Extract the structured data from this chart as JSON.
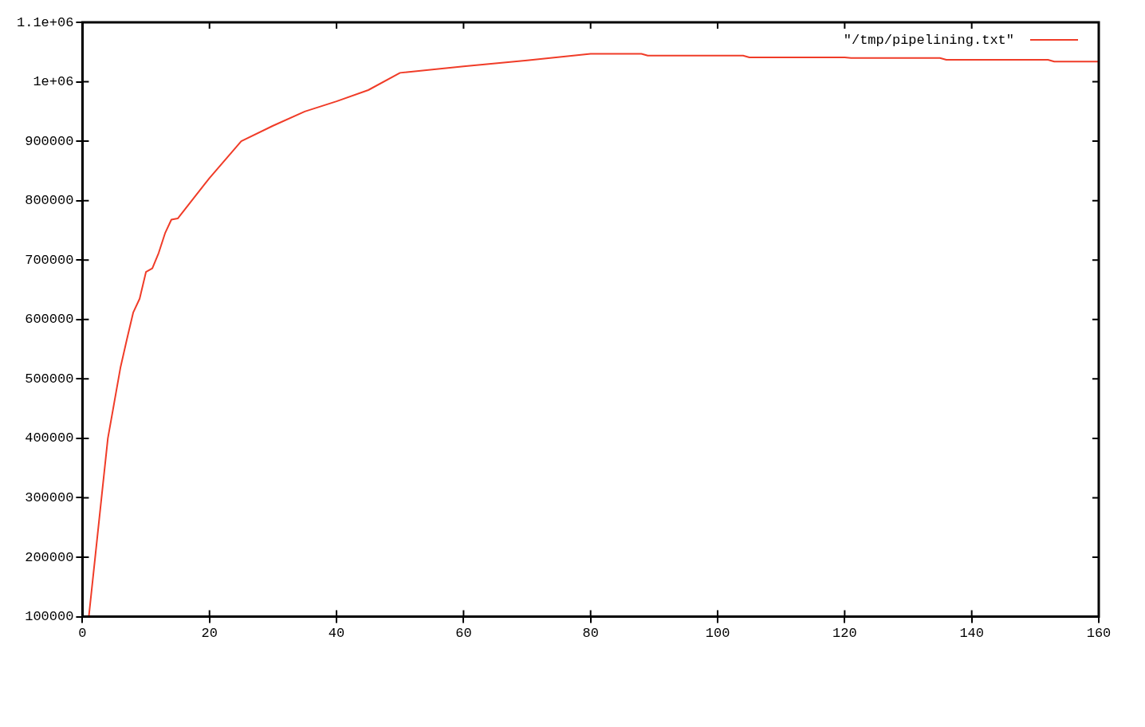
{
  "chart_data": {
    "type": "line",
    "x": [
      1,
      2,
      3,
      4,
      5,
      6,
      7,
      8,
      9,
      10,
      11,
      12,
      13,
      14,
      15,
      20,
      25,
      30,
      35,
      40,
      45,
      50,
      60,
      70,
      80,
      88,
      89,
      104,
      105,
      120,
      121,
      135,
      136,
      152,
      153,
      160
    ],
    "series": [
      {
        "name": "\"/tmp/pipelining.txt\"",
        "color": "#f03c28",
        "values": [
          100000,
          200000,
          300000,
          400000,
          460000,
          520000,
          567000,
          612000,
          635000,
          680000,
          686000,
          712000,
          745000,
          768000,
          770000,
          838000,
          900000,
          926000,
          950000,
          967000,
          986000,
          1015000,
          1026000,
          1036000,
          1047000,
          1047000,
          1044000,
          1044000,
          1041000,
          1041000,
          1040000,
          1040000,
          1037000,
          1037000,
          1034000,
          1034000
        ]
      }
    ],
    "xlim": [
      0,
      160
    ],
    "xticks": [
      0,
      20,
      40,
      60,
      80,
      100,
      120,
      140,
      160
    ],
    "ylim": [
      100000,
      1100000
    ],
    "yticks": [
      100000,
      200000,
      300000,
      400000,
      500000,
      600000,
      700000,
      800000,
      900000,
      {
        "value": 1000000,
        "label": "1e+06"
      },
      {
        "value": 1100000,
        "label": "1.1e+06"
      }
    ],
    "legend": "top right",
    "marker": "none",
    "line_style": "solid"
  }
}
